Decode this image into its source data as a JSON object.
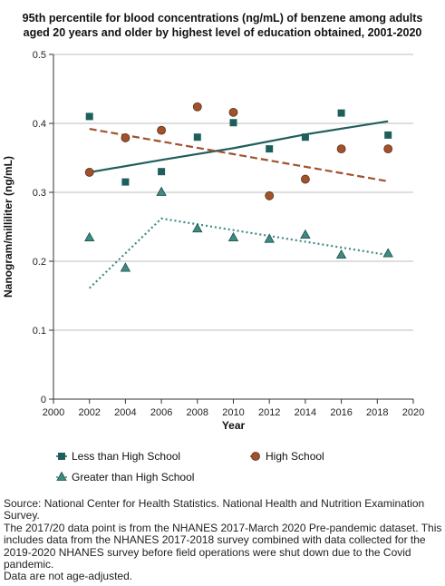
{
  "chart_data": {
    "type": "scatter",
    "title_lines": [
      "95th percentile for blood concentrations (ng/mL) of benzene among adults",
      "aged 20 years and older by highest level of education obtained, 2001-2020"
    ],
    "xlabel": "Year",
    "ylabel": "Nanogram/milliliter (ng/mL)",
    "xlim": [
      2000,
      2020
    ],
    "ylim": [
      0,
      0.5
    ],
    "x_ticks": [
      "2000",
      "2002",
      "2004",
      "2006",
      "2008",
      "2010",
      "2012",
      "2014",
      "2016",
      "2018",
      "2020"
    ],
    "y_ticks": [
      "0",
      "0.1",
      "0.2",
      "0.3",
      "0.4",
      "0.5"
    ],
    "grid": "horizontal",
    "legend_placement": "bottom",
    "series": [
      {
        "name": "Less than High School",
        "marker": "square",
        "color": "#1f5f5b",
        "trend_style": "solid",
        "points": [
          {
            "x": 2002,
            "y": 0.41
          },
          {
            "x": 2004,
            "y": 0.315
          },
          {
            "x": 2006,
            "y": 0.33
          },
          {
            "x": 2008,
            "y": 0.38
          },
          {
            "x": 2010,
            "y": 0.401
          },
          {
            "x": 2012,
            "y": 0.363
          },
          {
            "x": 2014,
            "y": 0.38
          },
          {
            "x": 2016,
            "y": 0.415
          },
          {
            "x": 2018.6,
            "y": 0.383
          }
        ],
        "trend": [
          {
            "x": 2002,
            "y": 0.329
          },
          {
            "x": 2006,
            "y": 0.347
          },
          {
            "x": 2010,
            "y": 0.364
          },
          {
            "x": 2014,
            "y": 0.384
          },
          {
            "x": 2018.6,
            "y": 0.403
          }
        ]
      },
      {
        "name": "High School",
        "marker": "circle",
        "color": "#a0522d",
        "trend_style": "dashed",
        "points": [
          {
            "x": 2002,
            "y": 0.329
          },
          {
            "x": 2004,
            "y": 0.379
          },
          {
            "x": 2006,
            "y": 0.39
          },
          {
            "x": 2008,
            "y": 0.424
          },
          {
            "x": 2010,
            "y": 0.416
          },
          {
            "x": 2012,
            "y": 0.295
          },
          {
            "x": 2014,
            "y": 0.319
          },
          {
            "x": 2016,
            "y": 0.363
          },
          {
            "x": 2018.6,
            "y": 0.363
          }
        ],
        "trend": [
          {
            "x": 2002,
            "y": 0.392
          },
          {
            "x": 2018.6,
            "y": 0.316
          }
        ]
      },
      {
        "name": "Greater than High School",
        "marker": "triangle",
        "color": "#3d8b85",
        "trend_style": "dotted",
        "points": [
          {
            "x": 2002,
            "y": 0.234
          },
          {
            "x": 2004,
            "y": 0.19
          },
          {
            "x": 2006,
            "y": 0.3
          },
          {
            "x": 2008,
            "y": 0.247
          },
          {
            "x": 2010,
            "y": 0.234
          },
          {
            "x": 2012,
            "y": 0.232
          },
          {
            "x": 2014,
            "y": 0.238
          },
          {
            "x": 2016,
            "y": 0.209
          },
          {
            "x": 2018.6,
            "y": 0.211
          }
        ],
        "trend": [
          {
            "x": 2002,
            "y": 0.161
          },
          {
            "x": 2006,
            "y": 0.262
          },
          {
            "x": 2018.6,
            "y": 0.209
          }
        ]
      }
    ]
  },
  "source_notes": [
    "Source: National Center for Health Statistics. National Health and Nutrition Examination Survey.",
    "The 2017/20 data point is from the NHANES 2017-March 2020 Pre-pandemic dataset. This includes data from the NHANES 2017-2018 survey combined with data collected for the 2019-2020 NHANES survey before field operations were shut down due to the Covid pandemic.",
    "Data are not age-adjusted."
  ]
}
